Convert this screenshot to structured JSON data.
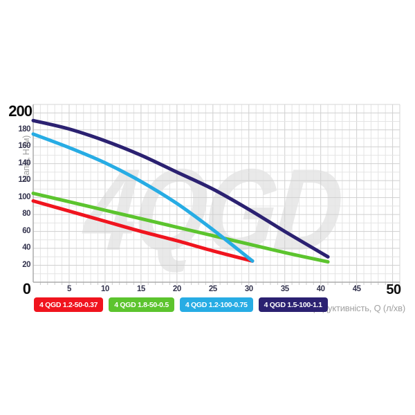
{
  "chart": {
    "watermark": "4QGD",
    "axes": {
      "y_max_label": "200",
      "origin_label": "0",
      "x_max_label": "50"
    }
  },
  "chart_data": {
    "type": "line",
    "title": "",
    "xlabel": "Продуктивність, Q (л/хв)",
    "ylabel": "Напір, H (м)",
    "xlim": [
      0,
      51
    ],
    "ylim": [
      0,
      210
    ],
    "x_major_step": 5,
    "x_minor_step": 1,
    "y_major_step": 20,
    "y_minor_step": 10,
    "x_tick_labels": [
      5,
      10,
      15,
      20,
      25,
      30,
      35,
      40,
      45
    ],
    "y_tick_labels": [
      20,
      40,
      60,
      80,
      100,
      120,
      140,
      160,
      180
    ],
    "grid": true,
    "legend_position": "bottom",
    "series": [
      {
        "name": "4 QGD 1.2-50-0.37",
        "color": "#f0141e",
        "points": [
          [
            0,
            96
          ],
          [
            5,
            84
          ],
          [
            10,
            72
          ],
          [
            15,
            60
          ],
          [
            20,
            49
          ],
          [
            25,
            37
          ],
          [
            30.5,
            25
          ]
        ]
      },
      {
        "name": "4 QGD 1.8-50-0.5",
        "color": "#5cc42e",
        "points": [
          [
            0,
            105
          ],
          [
            5,
            95
          ],
          [
            10,
            85
          ],
          [
            15,
            75
          ],
          [
            20,
            65
          ],
          [
            25,
            55
          ],
          [
            30,
            45
          ],
          [
            35,
            35
          ],
          [
            41,
            24
          ]
        ]
      },
      {
        "name": "4 QGD 1.2-100-0.75",
        "color": "#27ace4",
        "points": [
          [
            0,
            175
          ],
          [
            5,
            159
          ],
          [
            10,
            141
          ],
          [
            15,
            119
          ],
          [
            20,
            93
          ],
          [
            25,
            62
          ],
          [
            30.5,
            25
          ]
        ]
      },
      {
        "name": "4 QGD 1.5-100-1.1",
        "color": "#2b2171",
        "points": [
          [
            0,
            191
          ],
          [
            5,
            181
          ],
          [
            10,
            167
          ],
          [
            15,
            150
          ],
          [
            20,
            130
          ],
          [
            25,
            110
          ],
          [
            30,
            86
          ],
          [
            35,
            60
          ],
          [
            41,
            30
          ]
        ]
      }
    ]
  }
}
